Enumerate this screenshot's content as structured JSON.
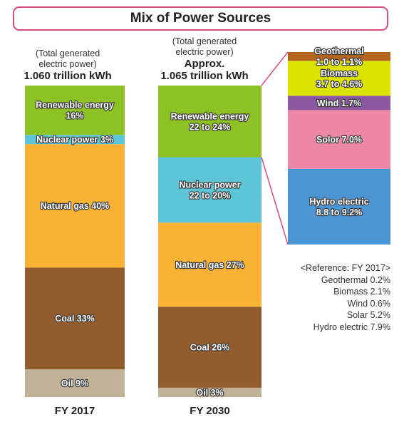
{
  "title": "Mix of Power Sources",
  "colors": {
    "renewable": "#8cc224",
    "nuclear": "#5cc6d8",
    "gas": "#f9b233",
    "coal": "#935c2d",
    "oil": "#c1b298",
    "geothermal": "#b5651d",
    "biomass": "#dde300",
    "wind": "#8a57a0",
    "solar": "#ec87a7",
    "hydro": "#4b95d3",
    "connector": "#d94b7a",
    "label_outline": "#3a3a3a"
  },
  "chart_data": {
    "type": "bar",
    "stacked": true,
    "bars": [
      {
        "name": "FY 2017",
        "caption": "(Total generated electric power)",
        "caption_lines": [
          "(Total generated",
          "electric power)"
        ],
        "total": "1.060 trillion kWh",
        "total_lines": [
          "1.060 trillion kWh"
        ],
        "segments": [
          {
            "key": "oil",
            "label_lines": [
              "Oil 9%"
            ],
            "value": 9
          },
          {
            "key": "coal",
            "label_lines": [
              "Coal 33%"
            ],
            "value": 33
          },
          {
            "key": "gas",
            "label_lines": [
              "Natural gas 40%"
            ],
            "value": 40
          },
          {
            "key": "nuclear",
            "label_lines": [
              "Nuclear power 3%"
            ],
            "value": 3
          },
          {
            "key": "renewable",
            "label_lines": [
              "Renewable energy",
              "16%"
            ],
            "value": 16
          }
        ]
      },
      {
        "name": "FY 2030",
        "caption": "(Total generated electric power)",
        "caption_lines": [
          "(Total generated",
          "electric power)"
        ],
        "total": "Approx. 1.065 trillion kWh",
        "total_lines": [
          "Approx.",
          "1.065 trillion kWh"
        ],
        "segments": [
          {
            "key": "oil",
            "label_lines": [
              "Oil 3%"
            ],
            "value": 3
          },
          {
            "key": "coal",
            "label_lines": [
              "Coal 26%"
            ],
            "value": 26
          },
          {
            "key": "gas",
            "label_lines": [
              "Natural gas 27%"
            ],
            "value": 27
          },
          {
            "key": "nuclear",
            "label_lines": [
              "Nuclear power",
              "22 to 20%"
            ],
            "value": 21
          },
          {
            "key": "renewable",
            "label_lines": [
              "Renewable energy",
              "22 to 24%"
            ],
            "value": 23
          }
        ]
      }
    ],
    "breakdown": {
      "of": "Renewable energy (FY 2030)",
      "segments": [
        {
          "key": "hydro",
          "label_lines": [
            "Hydro electric",
            "8.8 to 9.2%"
          ],
          "value": 9.0
        },
        {
          "key": "solar",
          "label_lines": [
            "Solor 7.0%"
          ],
          "value": 7.0
        },
        {
          "key": "wind",
          "label_lines": [
            "Wind 1.7%"
          ],
          "value": 1.7
        },
        {
          "key": "biomass",
          "label_lines": [
            "Biomass",
            "3.7 to 4.6%"
          ],
          "value": 4.15
        },
        {
          "key": "geothermal",
          "label_lines": [
            "Geothermal",
            "1.0 to 1.1%"
          ],
          "value": 1.05
        }
      ]
    },
    "reference": {
      "title": "<Reference: FY 2017>",
      "items": [
        {
          "name": "Geothermal",
          "value": 0.2,
          "text": "Geothermal 0.2%"
        },
        {
          "name": "Biomass",
          "value": 2.1,
          "text": "Biomass 2.1%"
        },
        {
          "name": "Wind",
          "value": 0.6,
          "text": "Wind 0.6%"
        },
        {
          "name": "Solar",
          "value": 5.2,
          "text": "Solar 5.2%"
        },
        {
          "name": "Hydro electric",
          "value": 7.9,
          "text": "Hydro electric 7.9%"
        }
      ]
    }
  }
}
